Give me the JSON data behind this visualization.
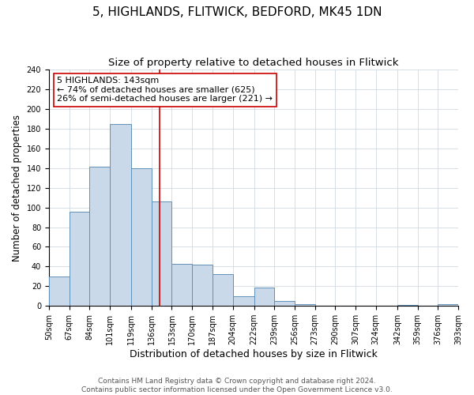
{
  "title": "5, HIGHLANDS, FLITWICK, BEDFORD, MK45 1DN",
  "subtitle": "Size of property relative to detached houses in Flitwick",
  "xlabel": "Distribution of detached houses by size in Flitwick",
  "ylabel": "Number of detached properties",
  "bin_edges": [
    50,
    67,
    84,
    101,
    119,
    136,
    153,
    170,
    187,
    204,
    222,
    239,
    256,
    273,
    290,
    307,
    324,
    342,
    359,
    376,
    393
  ],
  "bin_labels": [
    "50sqm",
    "67sqm",
    "84sqm",
    "101sqm",
    "119sqm",
    "136sqm",
    "153sqm",
    "170sqm",
    "187sqm",
    "204sqm",
    "222sqm",
    "239sqm",
    "256sqm",
    "273sqm",
    "290sqm",
    "307sqm",
    "324sqm",
    "342sqm",
    "359sqm",
    "376sqm",
    "393sqm"
  ],
  "counts": [
    30,
    96,
    141,
    185,
    140,
    106,
    43,
    42,
    32,
    10,
    19,
    5,
    2,
    0,
    0,
    0,
    0,
    1,
    0,
    2
  ],
  "bar_facecolor": "#c9d9ea",
  "bar_edgecolor": "#6090b8",
  "vline_x": 143,
  "vline_color": "#cc0000",
  "annotation_text": "5 HIGHLANDS: 143sqm\n← 74% of detached houses are smaller (625)\n26% of semi-detached houses are larger (221) →",
  "annotation_box_edgecolor": "#cc0000",
  "annotation_box_facecolor": "white",
  "grid_color": "#d0d8e0",
  "ylim": [
    0,
    240
  ],
  "yticks": [
    0,
    20,
    40,
    60,
    80,
    100,
    120,
    140,
    160,
    180,
    200,
    220,
    240
  ],
  "footer_line1": "Contains HM Land Registry data © Crown copyright and database right 2024.",
  "footer_line2": "Contains public sector information licensed under the Open Government Licence v3.0.",
  "title_fontsize": 11,
  "subtitle_fontsize": 9.5,
  "xlabel_fontsize": 9,
  "ylabel_fontsize": 8.5,
  "tick_fontsize": 7,
  "footer_fontsize": 6.5,
  "annotation_fontsize": 8
}
